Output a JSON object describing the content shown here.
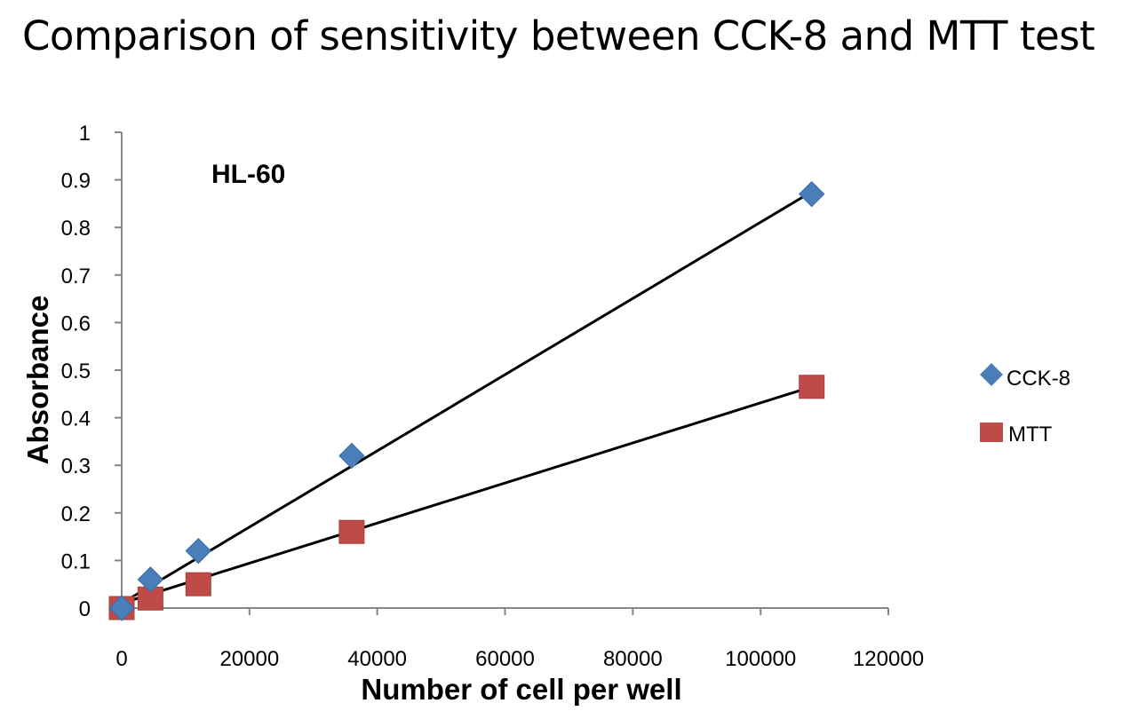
{
  "title": "Comparison of sensitivity between CCK-8 and MTT test",
  "chart_data": {
    "type": "scatter",
    "annotation": "HL-60",
    "xlabel": "Number of cell per well",
    "ylabel": "Absorbance",
    "xlim": [
      0,
      120000
    ],
    "ylim": [
      0,
      1
    ],
    "x_ticks": [
      "0",
      "20000",
      "40000",
      "60000",
      "80000",
      "100000",
      "120000"
    ],
    "y_ticks": [
      "0",
      "0.1",
      "0.2",
      "0.3",
      "0.4",
      "0.5",
      "0.6",
      "0.7",
      "0.8",
      "0.9",
      "1"
    ],
    "grid": false,
    "legend_position": "right",
    "series": [
      {
        "name": "CCK-8",
        "marker": "diamond",
        "color": "#4a7ebb",
        "x": [
          0,
          4500,
          12000,
          36000,
          108000
        ],
        "y": [
          0.0,
          0.06,
          0.12,
          0.32,
          0.87
        ],
        "trendline": {
          "x": [
            0,
            108000
          ],
          "y": [
            0.01,
            0.875
          ]
        }
      },
      {
        "name": "MTT",
        "marker": "square",
        "color": "#be4b48",
        "x": [
          0,
          4500,
          12000,
          36000,
          108000
        ],
        "y": [
          0.0,
          0.02,
          0.05,
          0.16,
          0.465
        ],
        "trendline": {
          "x": [
            0,
            108000
          ],
          "y": [
            0.01,
            0.465
          ]
        }
      }
    ]
  }
}
